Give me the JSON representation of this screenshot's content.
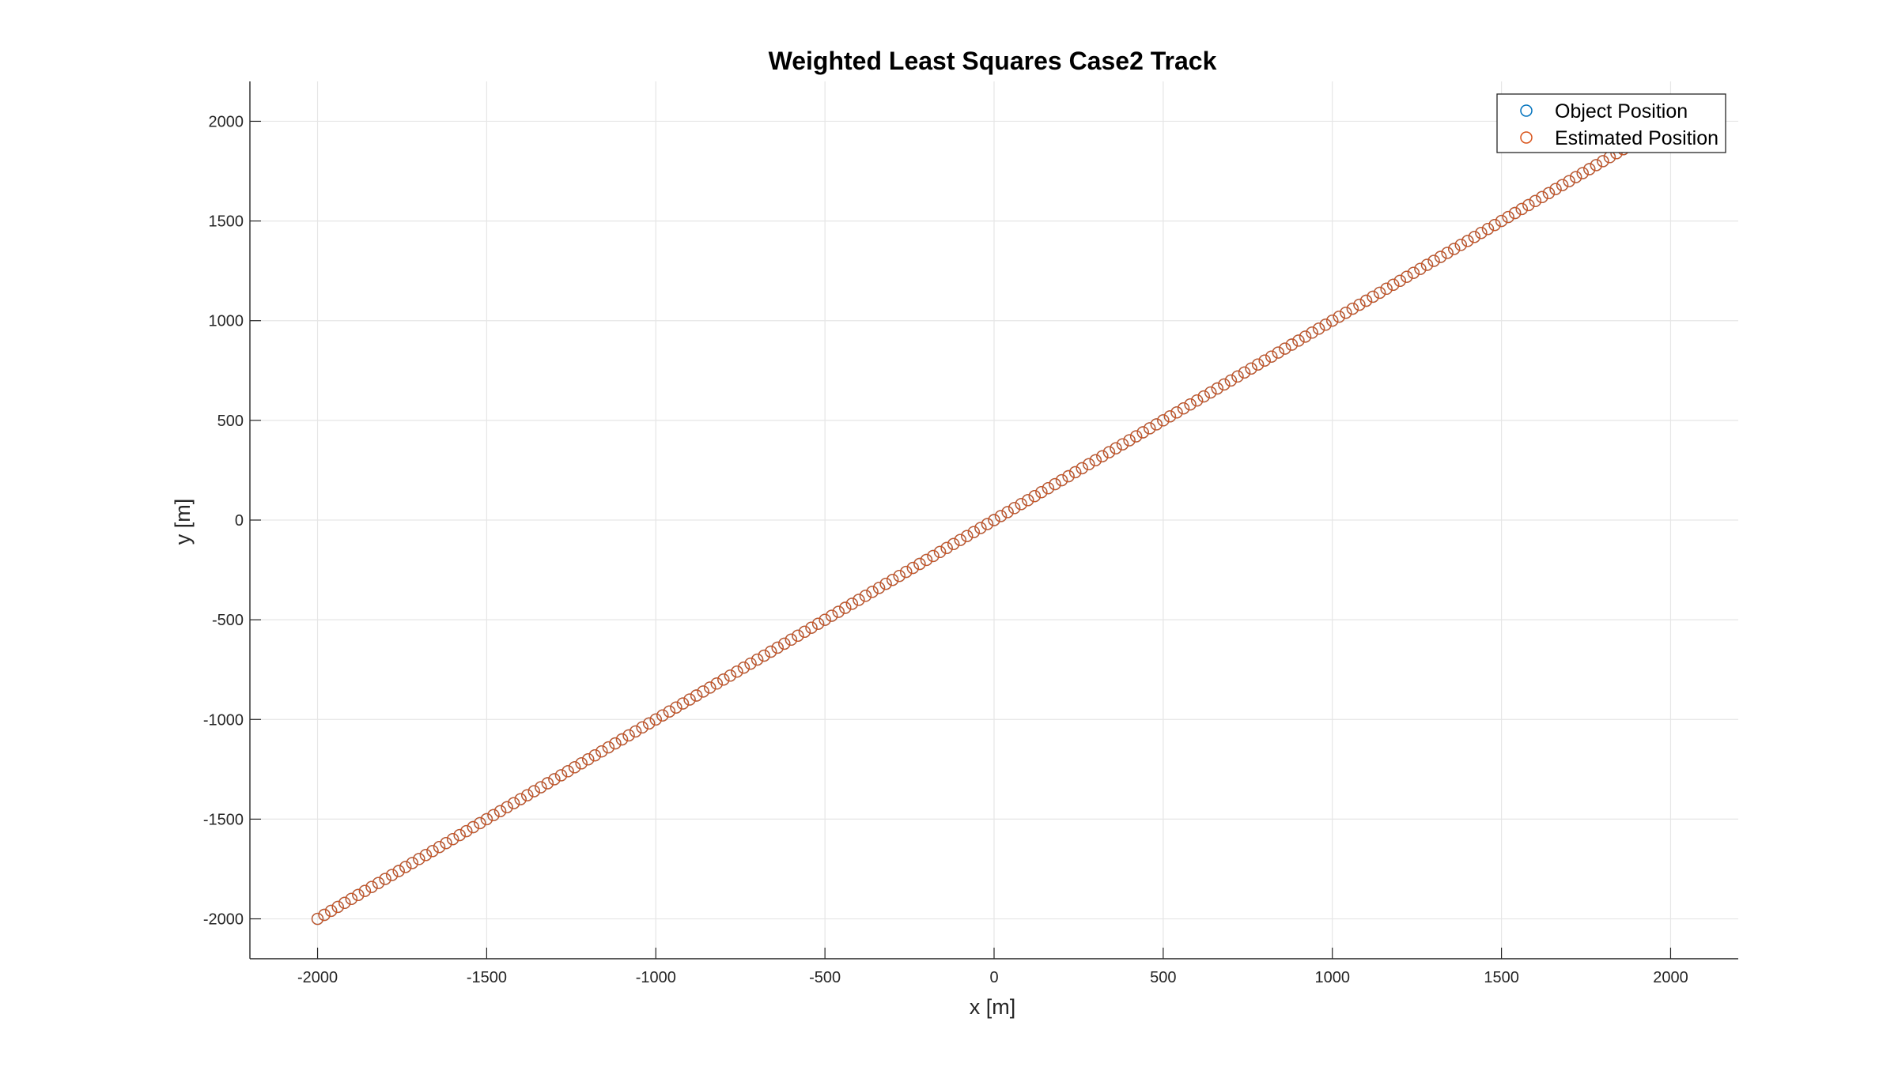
{
  "chart_data": {
    "type": "scatter",
    "title": "Weighted Least Squares Case2 Track",
    "xlabel": "x [m]",
    "ylabel": "y [m]",
    "xlim": [
      -2200,
      2200
    ],
    "ylim": [
      -2200,
      2200
    ],
    "xticks": [
      -2000,
      -1500,
      -1000,
      -500,
      0,
      500,
      1000,
      1500,
      2000
    ],
    "yticks": [
      -2000,
      -1500,
      -1000,
      -500,
      0,
      500,
      1000,
      1500,
      2000
    ],
    "xtick_labels": [
      "-2000",
      "-1500",
      "-1000",
      "-500",
      "0",
      "500",
      "1000",
      "1500",
      "2000"
    ],
    "ytick_labels": [
      "-2000",
      "-1500",
      "-1000",
      "-500",
      "0",
      "500",
      "1000",
      "1500",
      "2000"
    ],
    "grid": true,
    "legend_position": "top-right",
    "series": [
      {
        "name": "Object Position",
        "color": "#0072BD",
        "marker": "circle-open",
        "x_start": -2000,
        "x_end": 2000,
        "count": 201,
        "slope": 1.0,
        "intercept": 0
      },
      {
        "name": "Estimated Position",
        "color": "#D95319",
        "marker": "circle-open",
        "x_start": -2000,
        "x_end": 2000,
        "count": 201,
        "slope": 1.0,
        "intercept": 0
      }
    ]
  }
}
